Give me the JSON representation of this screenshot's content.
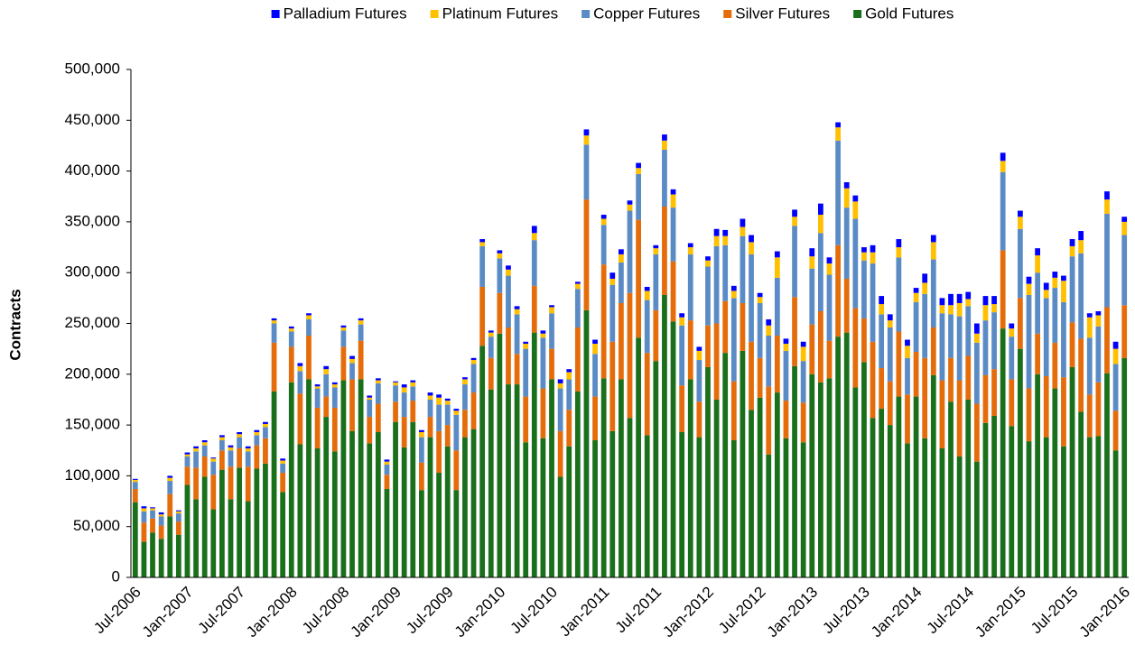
{
  "chart_data": {
    "type": "stacked_bar",
    "y_label": "Contracts",
    "categories": [
      "Jul-2006",
      null,
      null,
      null,
      null,
      null,
      "Jan-2007",
      null,
      null,
      null,
      null,
      null,
      "Jul-2007",
      null,
      null,
      null,
      null,
      null,
      "Jan-2008",
      null,
      null,
      null,
      null,
      null,
      "Jul-2008",
      null,
      null,
      null,
      null,
      null,
      "Jan-2009",
      null,
      null,
      null,
      null,
      null,
      "Jul-2009",
      null,
      null,
      null,
      null,
      null,
      "Jan-2010",
      null,
      null,
      null,
      null,
      null,
      "Jul-2010",
      null,
      null,
      null,
      null,
      null,
      "Jan-2011",
      null,
      null,
      null,
      null,
      null,
      "Jul-2011",
      null,
      null,
      null,
      null,
      null,
      "Jan-2012",
      null,
      null,
      null,
      null,
      null,
      "Jul-2012",
      null,
      null,
      null,
      null,
      null,
      "Jan-2013",
      null,
      null,
      null,
      null,
      null,
      "Jul-2013",
      null,
      null,
      null,
      null,
      null,
      "Jan-2014",
      null,
      null,
      null,
      null,
      null,
      "Jul-2014",
      null,
      null,
      null,
      null,
      null,
      "Jan-2015",
      null,
      null,
      null,
      null,
      null,
      "Jul-2015",
      null,
      null,
      null,
      null,
      null,
      "Jan-2016"
    ],
    "series": [
      {
        "name": "Gold Futures",
        "color": "#1a6f1a",
        "values": [
          74000,
          35000,
          44000,
          38000,
          60000,
          42000,
          91000,
          77000,
          99000,
          67000,
          106000,
          77000,
          108000,
          75000,
          107000,
          112000,
          183000,
          84000,
          192000,
          131000,
          195000,
          127000,
          158000,
          124000,
          194000,
          144000,
          195000,
          132000,
          143000,
          87000,
          153000,
          128000,
          153000,
          86000,
          138000,
          103000,
          129000,
          86000,
          138000,
          146000,
          228000,
          185000,
          240000,
          190000,
          190000,
          133000,
          241000,
          137000,
          195000,
          99000,
          129000,
          183000,
          263000,
          135000,
          196000,
          144000,
          195000,
          157000,
          236000,
          140000,
          213000,
          278000,
          252000,
          143000,
          195000,
          138000,
          207000,
          175000,
          221000,
          135000,
          223000,
          165000,
          177000,
          121000,
          182000,
          137000,
          208000,
          133000,
          200000,
          192000,
          196000,
          237000,
          241000,
          187000,
          212000,
          157000,
          166000,
          150000,
          178000,
          132000,
          178000,
          137000,
          199000,
          127000,
          173000,
          119000,
          175000,
          114000,
          152000,
          159000,
          245000,
          149000,
          225000,
          134000,
          200000,
          138000,
          186000,
          129000,
          207000,
          163000,
          138000,
          139000,
          201000,
          125000,
          216000
        ]
      },
      {
        "name": "Silver Futures",
        "color": "#e46c0a",
        "values": [
          13000,
          19000,
          14000,
          13000,
          22000,
          13000,
          18000,
          31000,
          20000,
          34000,
          19000,
          32000,
          19000,
          34000,
          23000,
          25000,
          48000,
          19000,
          35000,
          50000,
          43000,
          40000,
          20000,
          43000,
          33000,
          51000,
          38000,
          26000,
          28000,
          14000,
          20000,
          30000,
          21000,
          27000,
          20000,
          41000,
          21000,
          39000,
          27000,
          36000,
          58000,
          31000,
          40000,
          56000,
          30000,
          45000,
          46000,
          49000,
          30000,
          45000,
          36000,
          63000,
          109000,
          43000,
          112000,
          88000,
          75000,
          123000,
          116000,
          81000,
          50000,
          87000,
          59000,
          46000,
          58000,
          35000,
          41000,
          75000,
          51000,
          58000,
          47000,
          67000,
          39000,
          67000,
          56000,
          37000,
          68000,
          39000,
          49000,
          70000,
          37000,
          90000,
          53000,
          78000,
          43000,
          75000,
          40000,
          43000,
          64000,
          48000,
          44000,
          79000,
          47000,
          67000,
          43000,
          75000,
          43000,
          57000,
          47000,
          46000,
          77000,
          46000,
          50000,
          52000,
          40000,
          60000,
          45000,
          68000,
          44000,
          72000,
          42000,
          53000,
          65000,
          39000,
          52000
        ]
      },
      {
        "name": "Copper Futures",
        "color": "#5b8bc5",
        "values": [
          7000,
          11000,
          8000,
          9000,
          13000,
          8000,
          10000,
          16000,
          11000,
          13000,
          10000,
          16000,
          11000,
          15000,
          10000,
          11000,
          19000,
          9000,
          15000,
          22000,
          16000,
          19000,
          22000,
          20000,
          16000,
          16000,
          16000,
          17000,
          20000,
          10000,
          16000,
          24000,
          14000,
          25000,
          17000,
          26000,
          20000,
          35000,
          25000,
          28000,
          40000,
          21000,
          34000,
          51000,
          39000,
          47000,
          45000,
          50000,
          35000,
          42000,
          30000,
          38000,
          54000,
          42000,
          39000,
          56000,
          40000,
          81000,
          45000,
          52000,
          55000,
          56000,
          53000,
          59000,
          65000,
          41000,
          58000,
          76000,
          55000,
          82000,
          66000,
          86000,
          54000,
          50000,
          57000,
          49000,
          70000,
          41000,
          55000,
          77000,
          65000,
          103000,
          70000,
          88000,
          57000,
          77000,
          53000,
          53000,
          73000,
          36000,
          49000,
          63000,
          67000,
          66000,
          43000,
          63000,
          49000,
          60000,
          54000,
          56000,
          77000,
          42000,
          68000,
          92000,
          60000,
          77000,
          54000,
          74000,
          65000,
          84000,
          56000,
          55000,
          92000,
          46000,
          69000
        ]
      },
      {
        "name": "Platinum Futures",
        "color": "#ffc000",
        "values": [
          2000,
          3000,
          2000,
          2000,
          3000,
          2000,
          2000,
          3000,
          3000,
          3000,
          3000,
          3000,
          3000,
          3000,
          3000,
          3000,
          3000,
          3000,
          3000,
          5000,
          4000,
          2000,
          5000,
          3000,
          3000,
          4000,
          4000,
          2000,
          3000,
          3000,
          3000,
          5000,
          4000,
          5000,
          4000,
          7000,
          4000,
          4000,
          5000,
          4000,
          4000,
          4000,
          5000,
          6000,
          5000,
          5000,
          7000,
          4000,
          6000,
          5000,
          7000,
          5000,
          9000,
          10000,
          6000,
          6000,
          8000,
          6000,
          6000,
          9000,
          6000,
          9000,
          13000,
          8000,
          7000,
          9000,
          6000,
          10000,
          9000,
          7000,
          9000,
          12000,
          6000,
          10000,
          20000,
          7000,
          9000,
          14000,
          12000,
          18000,
          11000,
          13000,
          19000,
          17000,
          8000,
          11000,
          10000,
          7000,
          10000,
          12000,
          9000,
          11000,
          17000,
          8000,
          9000,
          13000,
          7000,
          9000,
          15000,
          8000,
          11000,
          8000,
          12000,
          11000,
          17000,
          8000,
          10000,
          21000,
          10000,
          13000,
          20000,
          11000,
          14000,
          15000,
          13000
        ]
      },
      {
        "name": "Palladium Futures",
        "color": "#0000ff",
        "values": [
          1000,
          2000,
          1000,
          2000,
          2000,
          1000,
          2000,
          2000,
          2000,
          1000,
          2000,
          2000,
          2000,
          2000,
          2000,
          2000,
          2000,
          2000,
          2000,
          3000,
          2000,
          2000,
          3000,
          2000,
          2000,
          3000,
          2000,
          2000,
          2000,
          2000,
          1000,
          3000,
          2000,
          2000,
          3000,
          3000,
          2000,
          2000,
          2000,
          2000,
          3000,
          2000,
          3000,
          4000,
          3000,
          2000,
          7000,
          3000,
          2000,
          4000,
          3000,
          2000,
          6000,
          4000,
          4000,
          6000,
          5000,
          4000,
          5000,
          4000,
          3000,
          6000,
          5000,
          4000,
          4000,
          4000,
          4000,
          7000,
          6000,
          5000,
          8000,
          7000,
          4000,
          6000,
          6000,
          5000,
          7000,
          5000,
          8000,
          11000,
          6000,
          5000,
          6000,
          6000,
          5000,
          7000,
          8000,
          6000,
          8000,
          6000,
          5000,
          9000,
          7000,
          7000,
          11000,
          9000,
          7000,
          10000,
          9000,
          8000,
          8000,
          5000,
          6000,
          7000,
          7000,
          7000,
          6000,
          5000,
          7000,
          9000,
          4000,
          4000,
          8000,
          7000,
          5000
        ]
      }
    ],
    "ylim": [
      0,
      500000
    ],
    "yticks": [
      0,
      {
        "value": 50000,
        "label": "50,000"
      },
      {
        "value": 100000,
        "label": "100,000"
      },
      {
        "value": 150000,
        "label": "150,000"
      },
      {
        "value": 200000,
        "label": "200,000"
      },
      {
        "value": 250000,
        "label": "250,000"
      },
      {
        "value": 300000,
        "label": "300,000"
      },
      {
        "value": 350000,
        "label": "350,000"
      },
      {
        "value": 400000,
        "label": "400,000"
      },
      {
        "value": 450000,
        "label": "450,000"
      },
      {
        "value": 500000,
        "label": "500,000"
      }
    ],
    "grid": false,
    "legend": "top"
  }
}
